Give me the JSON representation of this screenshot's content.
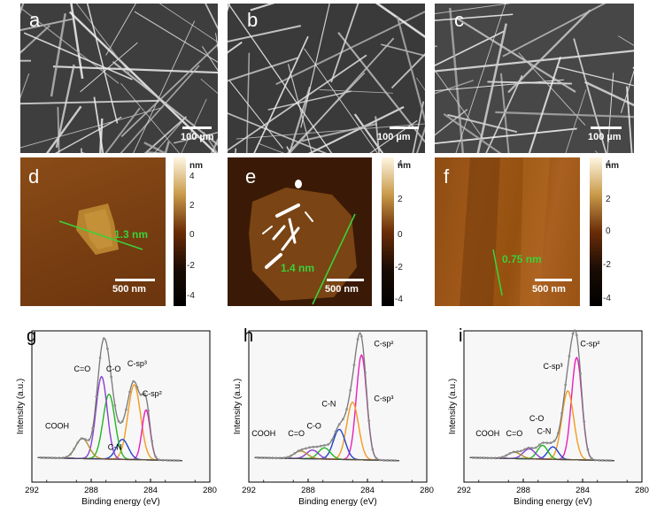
{
  "sem_panels": [
    {
      "letter": "a",
      "scale": "100 µm"
    },
    {
      "letter": "b",
      "scale": "100 µm"
    },
    {
      "letter": "c",
      "scale": "100 µm"
    }
  ],
  "afm_panels": [
    {
      "letter": "d",
      "scale": "500 nm",
      "height": "1.3 nm"
    },
    {
      "letter": "e",
      "scale": "500 nm",
      "height": "1.4 nm"
    },
    {
      "letter": "f",
      "scale": "500 nm",
      "height": "0.75 nm"
    }
  ],
  "colorbar": {
    "unit": "nm",
    "ticks": [
      "4",
      "2",
      "0",
      "-2",
      "-4"
    ],
    "colors": [
      "#fff6e2",
      "#c89a4a",
      "#6a2d08",
      "#1a0c04",
      "#000000"
    ]
  },
  "chart_data": [
    {
      "type": "line",
      "panel": "g",
      "xlabel": "Binding energy (eV)",
      "ylabel": "Intensity (a.u.)",
      "xlim": [
        292,
        280
      ],
      "xticks": [
        "292",
        "288",
        "284",
        "280"
      ],
      "series": [
        {
          "name": "C-sp3",
          "color": "#f39a1e",
          "center": 285.1,
          "height": 0.6,
          "width": 0.85
        },
        {
          "name": "C-sp2",
          "color": "#e81fbb",
          "center": 284.3,
          "height": 0.4,
          "width": 0.55
        },
        {
          "name": "C-N",
          "color": "#2244cc",
          "center": 285.9,
          "height": 0.16,
          "width": 0.8
        },
        {
          "name": "C-O",
          "color": "#22b622",
          "center": 286.8,
          "height": 0.52,
          "width": 0.8
        },
        {
          "name": "C=O",
          "color": "#8a3fd1",
          "center": 287.3,
          "height": 0.66,
          "width": 0.75
        },
        {
          "name": "COOH",
          "color": "#b48f2a",
          "center": 288.6,
          "height": 0.16,
          "width": 0.9
        }
      ],
      "labels": [
        {
          "text": "C-sp³",
          "x": 284.9,
          "y": 0.8
        },
        {
          "text": "C-sp²",
          "x": 283.9,
          "y": 0.56
        },
        {
          "text": "C-O",
          "x": 286.5,
          "y": 0.76
        },
        {
          "text": "C=O",
          "x": 288.6,
          "y": 0.76
        },
        {
          "text": "C-N",
          "x": 286.4,
          "y": 0.13
        },
        {
          "text": "COOH",
          "x": 290.3,
          "y": 0.3
        }
      ]
    },
    {
      "type": "line",
      "panel": "h",
      "xlabel": "Binding energy (eV)",
      "ylabel": "Intensity (a.u.)",
      "xlim": [
        292,
        280
      ],
      "xticks": [
        "292",
        "288",
        "284",
        "280"
      ],
      "series": [
        {
          "name": "C-sp2",
          "color": "#e81fbb",
          "center": 284.4,
          "height": 0.84,
          "width": 0.7
        },
        {
          "name": "C-sp3",
          "color": "#f39a1e",
          "center": 285.0,
          "height": 0.46,
          "width": 0.8
        },
        {
          "name": "C-N",
          "color": "#2244cc",
          "center": 285.9,
          "height": 0.24,
          "width": 0.8
        },
        {
          "name": "C-O",
          "color": "#22b622",
          "center": 286.9,
          "height": 0.09,
          "width": 0.8
        },
        {
          "name": "C=O",
          "color": "#8a3fd1",
          "center": 287.7,
          "height": 0.07,
          "width": 0.8
        },
        {
          "name": "COOH",
          "color": "#b48f2a",
          "center": 288.5,
          "height": 0.06,
          "width": 0.9
        }
      ],
      "labels": [
        {
          "text": "C-sp²",
          "x": 282.9,
          "y": 0.96
        },
        {
          "text": "C-sp³",
          "x": 282.9,
          "y": 0.52
        },
        {
          "text": "C-N",
          "x": 286.6,
          "y": 0.48
        },
        {
          "text": "C-O",
          "x": 287.6,
          "y": 0.3
        },
        {
          "text": "C=O",
          "x": 288.8,
          "y": 0.24
        },
        {
          "text": "COOH",
          "x": 291.0,
          "y": 0.24
        }
      ]
    },
    {
      "type": "line",
      "panel": "i",
      "xlabel": "Binding energy (eV)",
      "ylabel": "Intensity (a.u.)",
      "xlim": [
        292,
        280
      ],
      "xticks": [
        "292",
        "288",
        "284",
        "280"
      ],
      "series": [
        {
          "name": "C-sp2",
          "color": "#e81fbb",
          "center": 284.4,
          "height": 0.82,
          "width": 0.7
        },
        {
          "name": "C-sp3",
          "color": "#f39a1e",
          "center": 285.0,
          "height": 0.55,
          "width": 0.8
        },
        {
          "name": "C-N",
          "color": "#2244cc",
          "center": 286.0,
          "height": 0.1,
          "width": 0.7
        },
        {
          "name": "C-O",
          "color": "#22b622",
          "center": 286.7,
          "height": 0.11,
          "width": 0.7
        },
        {
          "name": "C=O",
          "color": "#8a3fd1",
          "center": 287.6,
          "height": 0.08,
          "width": 0.8
        },
        {
          "name": "COOH",
          "color": "#b48f2a",
          "center": 288.6,
          "height": 0.05,
          "width": 0.9
        }
      ],
      "labels": [
        {
          "text": "C-sp²",
          "x": 283.5,
          "y": 0.96
        },
        {
          "text": "C-sp³",
          "x": 286.0,
          "y": 0.78
        },
        {
          "text": "C-O",
          "x": 287.1,
          "y": 0.36
        },
        {
          "text": "C-N",
          "x": 286.6,
          "y": 0.26
        },
        {
          "text": "C=O",
          "x": 288.6,
          "y": 0.24
        },
        {
          "text": "COOH",
          "x": 290.4,
          "y": 0.24
        }
      ]
    }
  ]
}
